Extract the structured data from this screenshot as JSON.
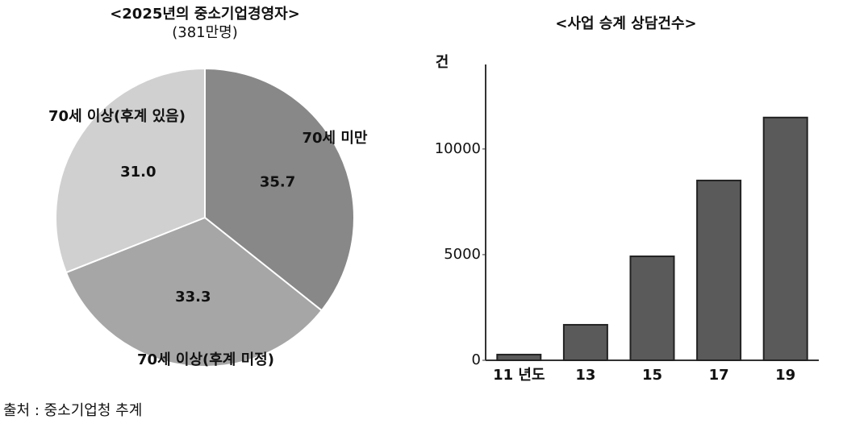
{
  "chart_data": [
    {
      "type": "pie",
      "title": "<2025년의 중소기업경영자>",
      "subtitle": "(381만명)",
      "categories": [
        "70세 미만",
        "70세 이상(후계 미정)",
        "70세 이상(후계 있음)"
      ],
      "values": [
        35.7,
        33.3,
        31.0
      ],
      "value_labels": [
        "35.7",
        "33.3",
        "31.0"
      ],
      "colors": [
        "#888888",
        "#a6a6a6",
        "#d0d0d0"
      ]
    },
    {
      "type": "bar",
      "title": "<사업 승계 상담건수>",
      "ylabel": "건",
      "categories": [
        "11 년도",
        "13",
        "15",
        "17",
        "19"
      ],
      "values": [
        270,
        1680,
        4920,
        8510,
        11490
      ],
      "color": "#5a5a5a",
      "ylim": [
        0,
        14000
      ],
      "yticks": [
        0,
        5000,
        10000
      ]
    }
  ],
  "source": "출처 : 중소기업청 추계"
}
